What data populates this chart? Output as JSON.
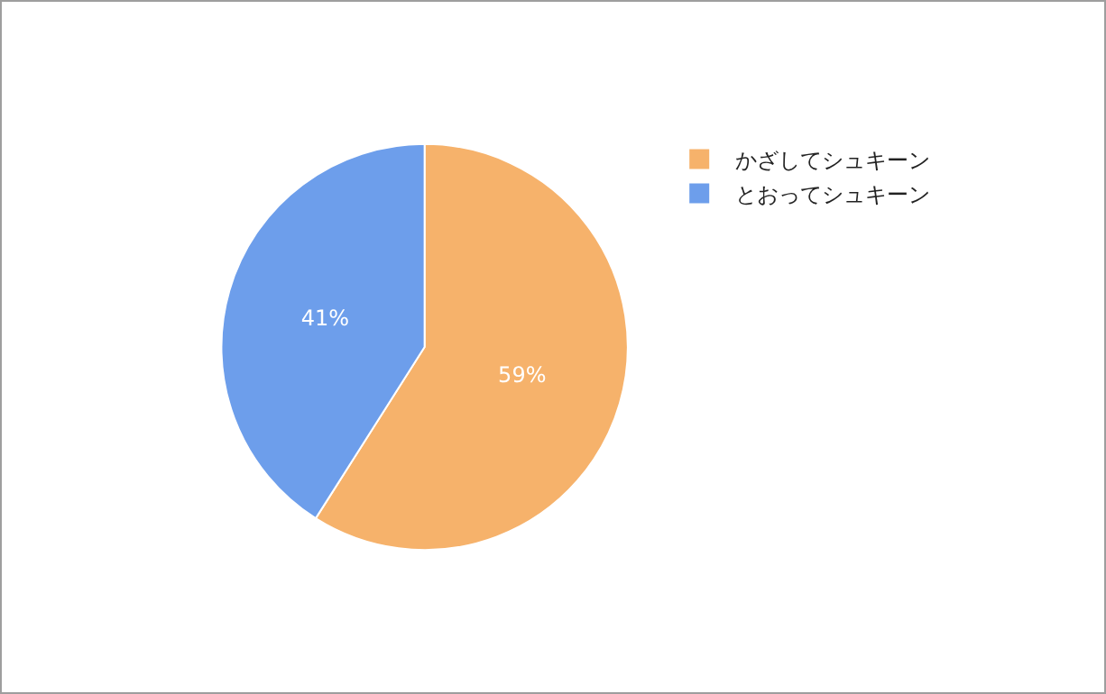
{
  "chart_data": {
    "type": "pie",
    "categories": [
      "かざしてシュキーン",
      "とおってシュキーン"
    ],
    "values": [
      59,
      41
    ],
    "colors": [
      "#f6b26b",
      "#6d9eeb"
    ],
    "value_labels": [
      "59%",
      "41%"
    ],
    "legend": "top right"
  }
}
